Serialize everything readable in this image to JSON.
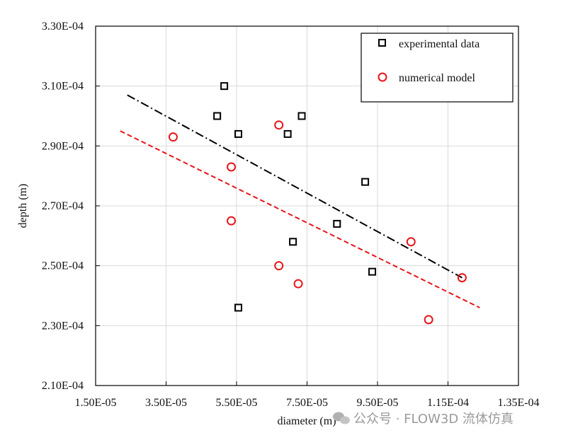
{
  "chart_data": {
    "type": "scatter",
    "xlabel": "diameter (m)",
    "ylabel": "depth (m)",
    "xlim": [
      1.5e-05,
      0.000135
    ],
    "ylim": [
      0.00021,
      0.00033
    ],
    "xticks": [
      "1.50E-05",
      "3.50E-05",
      "5.50E-05",
      "7.50E-05",
      "9.50E-05",
      "1.15E-04",
      "1.35E-04"
    ],
    "yticks": [
      "2.10E-04",
      "2.30E-04",
      "2.50E-04",
      "2.70E-04",
      "2.90E-04",
      "3.10E-04",
      "3.30E-04"
    ],
    "grid": true,
    "legend_position": "top-right",
    "series": [
      {
        "name": "experimental data",
        "marker": "square",
        "color": "#000000",
        "points": [
          [
            5.15e-05,
            0.00031
          ],
          [
            4.95e-05,
            0.0003
          ],
          [
            5.55e-05,
            0.000294
          ],
          [
            6.95e-05,
            0.000294
          ],
          [
            7.35e-05,
            0.0003
          ],
          [
            7.1e-05,
            0.000258
          ],
          [
            8.35e-05,
            0.000264
          ],
          [
            9.15e-05,
            0.000278
          ],
          [
            9.35e-05,
            0.000248
          ],
          [
            5.55e-05,
            0.000236
          ]
        ]
      },
      {
        "name": "numerical model",
        "marker": "circle",
        "color": "#e8141b",
        "points": [
          [
            3.7e-05,
            0.000293
          ],
          [
            5.35e-05,
            0.000283
          ],
          [
            5.35e-05,
            0.000265
          ],
          [
            6.7e-05,
            0.000297
          ],
          [
            6.7e-05,
            0.00025
          ],
          [
            7.25e-05,
            0.000244
          ],
          [
            0.0001045,
            0.000258
          ],
          [
            0.0001095,
            0.000232
          ],
          [
            0.000119,
            0.000246
          ]
        ]
      }
    ],
    "trendlines": [
      {
        "series": "experimental data",
        "style": "dash-dot",
        "color": "#000000",
        "from": [
          2.4e-05,
          0.000307
        ],
        "to": [
          0.000119,
          0.000246
        ]
      },
      {
        "series": "numerical model",
        "style": "dashed",
        "color": "#e8141b",
        "from": [
          2.2e-05,
          0.000295
        ],
        "to": [
          0.000124,
          0.000236
        ]
      }
    ]
  },
  "watermark": {
    "text": "公众号 · FLOW3D 流体仿真"
  }
}
